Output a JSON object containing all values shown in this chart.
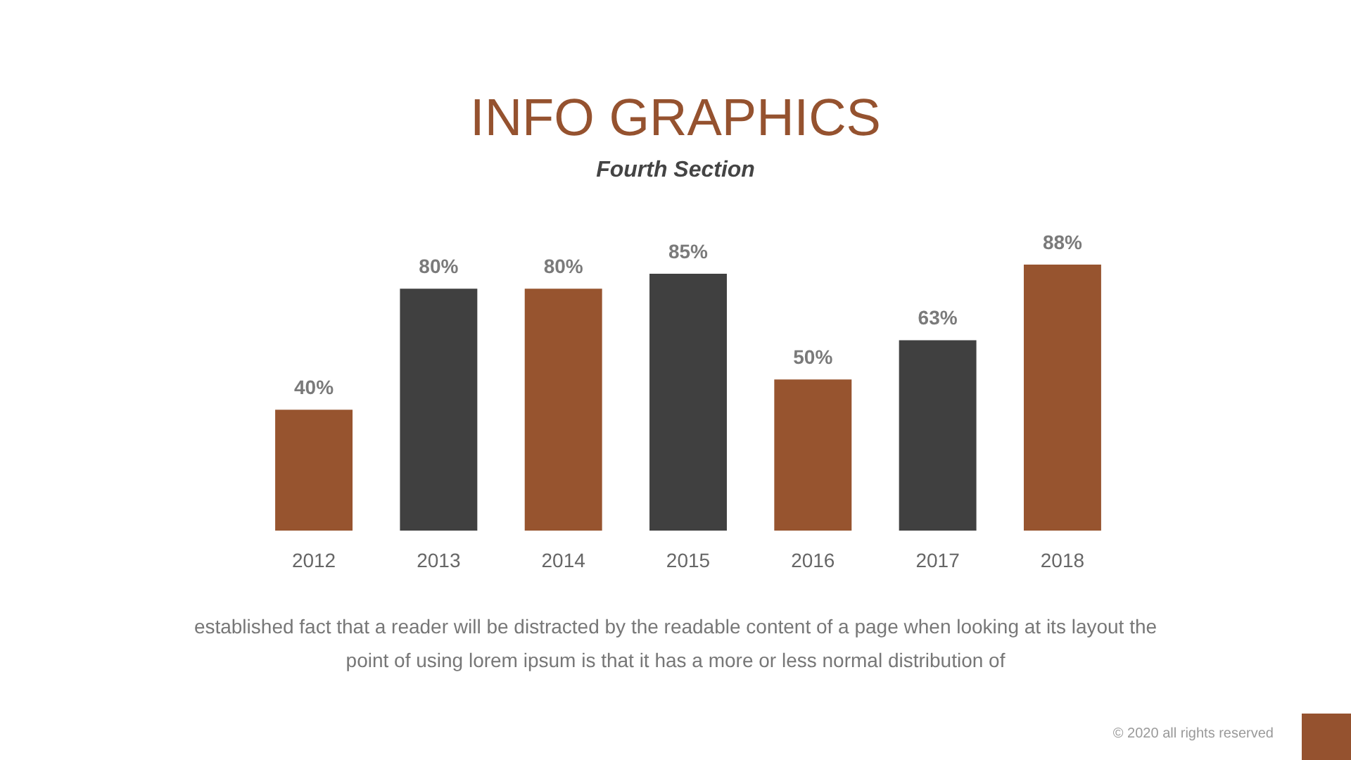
{
  "chart_data": {
    "type": "bar",
    "title": "INFO GRAPHICS",
    "subtitle": "Fourth Section",
    "categories": [
      "2012",
      "2013",
      "2014",
      "2015",
      "2016",
      "2017",
      "2018"
    ],
    "values": [
      40,
      80,
      80,
      85,
      50,
      63,
      88
    ],
    "value_labels": [
      "40%",
      "80%",
      "80%",
      "85%",
      "50%",
      "63%",
      "88%"
    ],
    "colors": [
      "#97542f",
      "#404040",
      "#97542f",
      "#404040",
      "#97542f",
      "#404040",
      "#97542f"
    ],
    "annotations": [
      "established fact that a reader will be distracted by the readable content of a page when looking at its layout the point of using lorem ipsum is that it has a more or less normal distribution of",
      "© 2020 all rights reserved"
    ]
  }
}
